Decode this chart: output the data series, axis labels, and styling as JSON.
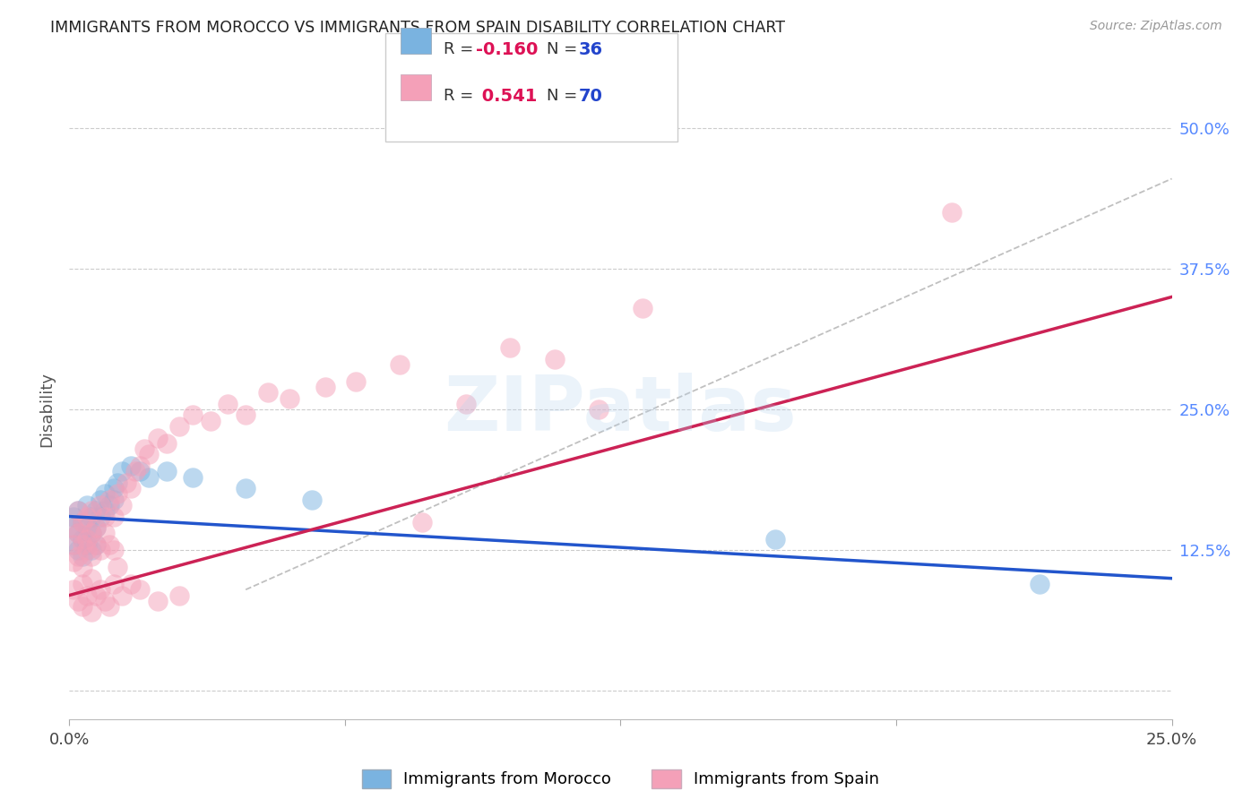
{
  "title": "IMMIGRANTS FROM MOROCCO VS IMMIGRANTS FROM SPAIN DISABILITY CORRELATION CHART",
  "source": "Source: ZipAtlas.com",
  "ylabel": "Disability",
  "xlim": [
    0.0,
    0.25
  ],
  "ylim": [
    -0.025,
    0.525
  ],
  "yticks": [
    0.0,
    0.125,
    0.25,
    0.375,
    0.5
  ],
  "ytick_labels": [
    "",
    "12.5%",
    "25.0%",
    "37.5%",
    "50.0%"
  ],
  "xtick_positions": [
    0.0,
    0.0625,
    0.125,
    0.1875,
    0.25
  ],
  "xtick_labels": [
    "0.0%",
    "",
    "",
    "",
    "25.0%"
  ],
  "color_blue": "#7ab3e0",
  "color_pink": "#f4a0b8",
  "color_blue_line": "#2255cc",
  "color_pink_line": "#cc2255",
  "color_grid": "#cccccc",
  "watermark": "ZIPatlas",
  "morocco_x": [
    0.001,
    0.001,
    0.001,
    0.002,
    0.002,
    0.002,
    0.003,
    0.003,
    0.003,
    0.004,
    0.004,
    0.004,
    0.005,
    0.005,
    0.005,
    0.006,
    0.006,
    0.006,
    0.007,
    0.007,
    0.008,
    0.008,
    0.009,
    0.01,
    0.01,
    0.011,
    0.012,
    0.014,
    0.016,
    0.018,
    0.022,
    0.028,
    0.04,
    0.055,
    0.16,
    0.22
  ],
  "morocco_y": [
    0.145,
    0.155,
    0.13,
    0.14,
    0.125,
    0.16,
    0.15,
    0.135,
    0.12,
    0.145,
    0.13,
    0.165,
    0.14,
    0.155,
    0.125,
    0.16,
    0.145,
    0.13,
    0.17,
    0.155,
    0.175,
    0.16,
    0.165,
    0.18,
    0.17,
    0.185,
    0.195,
    0.2,
    0.195,
    0.19,
    0.195,
    0.19,
    0.18,
    0.17,
    0.135,
    0.095
  ],
  "spain_x": [
    0.001,
    0.001,
    0.001,
    0.002,
    0.002,
    0.002,
    0.003,
    0.003,
    0.003,
    0.004,
    0.004,
    0.004,
    0.005,
    0.005,
    0.005,
    0.006,
    0.006,
    0.007,
    0.007,
    0.008,
    0.008,
    0.009,
    0.009,
    0.01,
    0.01,
    0.011,
    0.012,
    0.013,
    0.014,
    0.015,
    0.016,
    0.017,
    0.018,
    0.02,
    0.022,
    0.025,
    0.028,
    0.032,
    0.036,
    0.04,
    0.045,
    0.05,
    0.058,
    0.065,
    0.075,
    0.09,
    0.1,
    0.11,
    0.12,
    0.13,
    0.001,
    0.002,
    0.003,
    0.003,
    0.004,
    0.005,
    0.005,
    0.006,
    0.007,
    0.008,
    0.009,
    0.01,
    0.011,
    0.012,
    0.014,
    0.016,
    0.02,
    0.025,
    0.08,
    0.2
  ],
  "spain_y": [
    0.145,
    0.13,
    0.115,
    0.14,
    0.12,
    0.16,
    0.13,
    0.15,
    0.11,
    0.135,
    0.125,
    0.155,
    0.14,
    0.12,
    0.16,
    0.145,
    0.13,
    0.165,
    0.125,
    0.155,
    0.14,
    0.17,
    0.13,
    0.155,
    0.125,
    0.175,
    0.165,
    0.185,
    0.18,
    0.195,
    0.2,
    0.215,
    0.21,
    0.225,
    0.22,
    0.235,
    0.245,
    0.24,
    0.255,
    0.245,
    0.265,
    0.26,
    0.27,
    0.275,
    0.29,
    0.255,
    0.305,
    0.295,
    0.25,
    0.34,
    0.09,
    0.08,
    0.075,
    0.095,
    0.085,
    0.07,
    0.1,
    0.085,
    0.09,
    0.08,
    0.075,
    0.095,
    0.11,
    0.085,
    0.095,
    0.09,
    0.08,
    0.085,
    0.15,
    0.425
  ]
}
